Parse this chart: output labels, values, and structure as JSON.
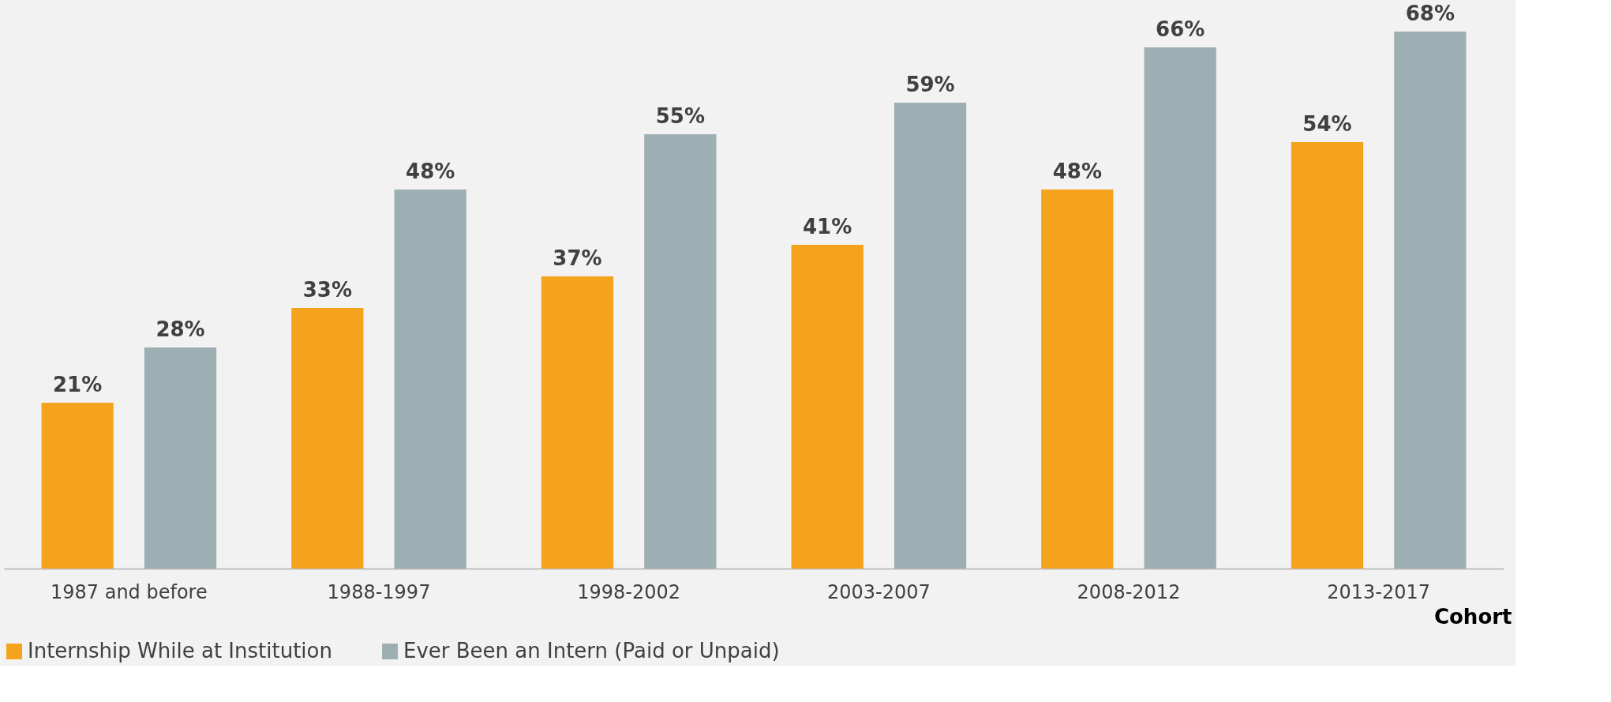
{
  "chart_data": {
    "type": "bar",
    "xlabel": "Cohort",
    "categories": [
      "1987 and before",
      "1988-1997",
      "1998-2002",
      "2003-2007",
      "2008-2012",
      "2013-2017"
    ],
    "series": [
      {
        "name": "Internship While at Institution",
        "color": "#f5a31c",
        "values": [
          21,
          33,
          37,
          41,
          48,
          54
        ],
        "value_labels": [
          "21%",
          "33%",
          "37%",
          "41%",
          "48%",
          "54%"
        ]
      },
      {
        "name": "Ever Been an Intern (Paid or Unpaid)",
        "color": "#9eafb4",
        "values": [
          28,
          48,
          55,
          59,
          66,
          68
        ],
        "value_labels": [
          "28%",
          "48%",
          "55%",
          "59%",
          "66%",
          "68%"
        ]
      }
    ],
    "legend": "bottom",
    "grid": false
  }
}
